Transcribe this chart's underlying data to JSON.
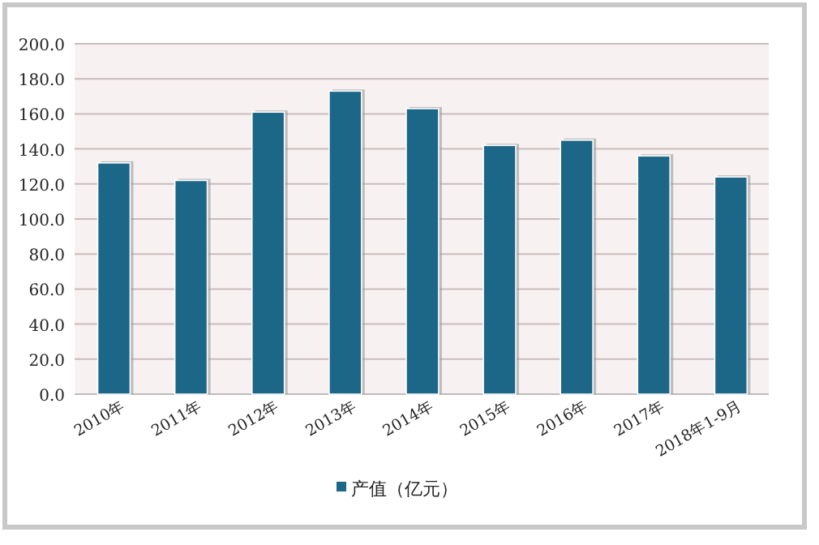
{
  "chart_data": {
    "type": "bar",
    "categories": [
      "2010年",
      "2011年",
      "2012年",
      "2013年",
      "2014年",
      "2015年",
      "2016年",
      "2017年",
      "2018年1-9月"
    ],
    "series": [
      {
        "name": "产值（亿元）",
        "color": "#1c6688",
        "values": [
          132,
          122,
          161,
          173,
          163,
          142,
          145,
          136,
          124
        ]
      }
    ],
    "ylim": [
      0,
      200
    ],
    "yticks": [
      {
        "value": 0,
        "label": "0.0"
      },
      {
        "value": 20,
        "label": "20.0"
      },
      {
        "value": 40,
        "label": "40.0"
      },
      {
        "value": 60,
        "label": "60.0"
      },
      {
        "value": 80,
        "label": "80.0"
      },
      {
        "value": 100,
        "label": "100.0"
      },
      {
        "value": 120,
        "label": "120.0"
      },
      {
        "value": 140,
        "label": "140.0"
      },
      {
        "value": 160,
        "label": "160.0"
      },
      {
        "value": 180,
        "label": "180.0"
      },
      {
        "value": 200,
        "label": "200.0"
      }
    ],
    "grid": "y",
    "legend": "bottom"
  }
}
